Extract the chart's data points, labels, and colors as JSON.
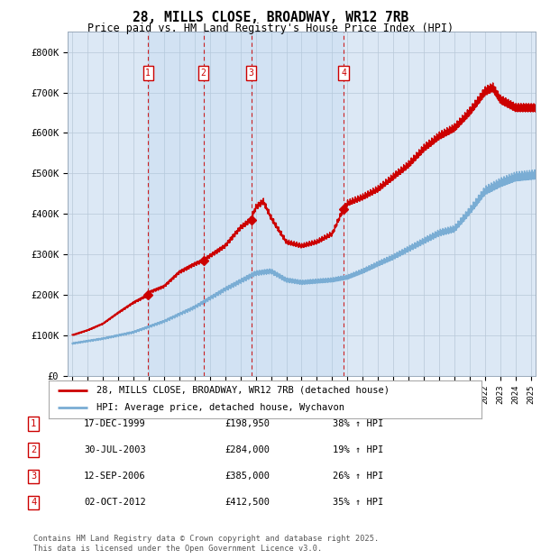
{
  "title": "28, MILLS CLOSE, BROADWAY, WR12 7RB",
  "subtitle": "Price paid vs. HM Land Registry's House Price Index (HPI)",
  "ylim": [
    0,
    850000
  ],
  "yticks": [
    0,
    100000,
    200000,
    300000,
    400000,
    500000,
    600000,
    700000,
    800000
  ],
  "ytick_labels": [
    "£0",
    "£100K",
    "£200K",
    "£300K",
    "£400K",
    "£500K",
    "£600K",
    "£700K",
    "£800K"
  ],
  "plot_bg_color": "#dce8f5",
  "red_line_color": "#cc0000",
  "blue_line_color": "#7aadd4",
  "dashed_line_color": "#cc0000",
  "sale_events": [
    {
      "label": "1",
      "date_str": "17-DEC-1999",
      "price": 198950,
      "price_str": "£198,950",
      "pct": "38%",
      "year": 1999.96
    },
    {
      "label": "2",
      "date_str": "30-JUL-2003",
      "price": 284000,
      "price_str": "£284,000",
      "pct": "19%",
      "year": 2003.58
    },
    {
      "label": "3",
      "date_str": "12-SEP-2006",
      "price": 385000,
      "price_str": "£385,000",
      "pct": "26%",
      "year": 2006.7
    },
    {
      "label": "4",
      "date_str": "02-OCT-2012",
      "price": 412500,
      "price_str": "£412,500",
      "pct": "35%",
      "year": 2012.75
    }
  ],
  "legend_label_red": "28, MILLS CLOSE, BROADWAY, WR12 7RB (detached house)",
  "legend_label_blue": "HPI: Average price, detached house, Wychavon",
  "footer": "Contains HM Land Registry data © Crown copyright and database right 2025.\nThis data is licensed under the Open Government Licence v3.0.",
  "x_start_year": 1995,
  "x_end_year": 2025
}
